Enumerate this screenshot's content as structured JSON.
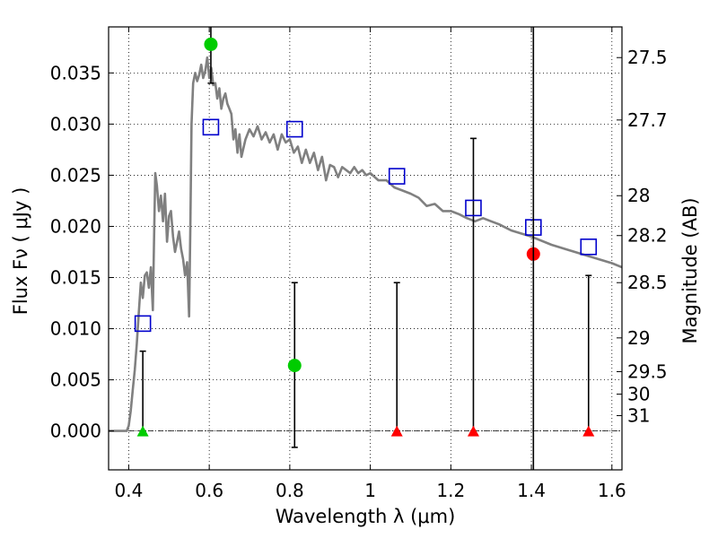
{
  "chart_data": {
    "type": "scatter",
    "xlabel": "Wavelength  λ (μm)",
    "ylabel": "Flux  Fν  ( μJy )",
    "ylabel_right": "Magnitude (AB)",
    "xlim": [
      0.35,
      1.625
    ],
    "ylim": [
      -0.0038,
      0.0395
    ],
    "grid": true,
    "x_ticks": [
      0.4,
      0.6,
      0.8,
      1.0,
      1.2,
      1.4,
      1.6
    ],
    "x_tick_labels": [
      "0.4",
      "0.6",
      "0.8",
      "1",
      "1.2",
      "1.4",
      "1.6"
    ],
    "y_ticks": [
      0.0,
      0.005,
      0.01,
      0.015,
      0.02,
      0.025,
      0.03,
      0.035
    ],
    "y_tick_labels": [
      "0.000",
      "0.005",
      "0.010",
      "0.015",
      "0.020",
      "0.025",
      "0.030",
      "0.035"
    ],
    "magnitude_ticks": [
      {
        "label": "27.5",
        "flux": 0.0365
      },
      {
        "label": "27.7",
        "flux": 0.0304
      },
      {
        "label": "28",
        "flux": 0.023
      },
      {
        "label": "28.2",
        "flux": 0.0191
      },
      {
        "label": "28.5",
        "flux": 0.0145
      },
      {
        "label": "29",
        "flux": 0.0091
      },
      {
        "label": "29.5",
        "flux": 0.0058
      },
      {
        "label": "30",
        "flux": 0.0036
      },
      {
        "label": "31",
        "flux": 0.0015
      }
    ],
    "model_spectrum": {
      "color": "#808080",
      "x": [
        0.35,
        0.395,
        0.4,
        0.405,
        0.41,
        0.415,
        0.42,
        0.425,
        0.43,
        0.435,
        0.44,
        0.445,
        0.45,
        0.455,
        0.46,
        0.463,
        0.466,
        0.47,
        0.475,
        0.48,
        0.485,
        0.49,
        0.495,
        0.5,
        0.505,
        0.51,
        0.515,
        0.52,
        0.525,
        0.53,
        0.535,
        0.54,
        0.545,
        0.55,
        0.553,
        0.556,
        0.56,
        0.565,
        0.57,
        0.575,
        0.58,
        0.585,
        0.59,
        0.595,
        0.6,
        0.605,
        0.61,
        0.615,
        0.62,
        0.625,
        0.63,
        0.635,
        0.64,
        0.645,
        0.65,
        0.655,
        0.66,
        0.665,
        0.67,
        0.675,
        0.68,
        0.69,
        0.7,
        0.71,
        0.72,
        0.73,
        0.74,
        0.75,
        0.76,
        0.77,
        0.78,
        0.79,
        0.8,
        0.81,
        0.82,
        0.83,
        0.84,
        0.85,
        0.86,
        0.87,
        0.88,
        0.89,
        0.9,
        0.91,
        0.92,
        0.93,
        0.94,
        0.95,
        0.96,
        0.97,
        0.98,
        0.99,
        1.0,
        1.02,
        1.04,
        1.06,
        1.08,
        1.1,
        1.12,
        1.14,
        1.16,
        1.18,
        1.2,
        1.22,
        1.24,
        1.26,
        1.28,
        1.3,
        1.32,
        1.35,
        1.4,
        1.45,
        1.5,
        1.55,
        1.6,
        1.625
      ],
      "y": [
        0.0,
        0.0,
        0.0005,
        0.002,
        0.004,
        0.006,
        0.0085,
        0.0115,
        0.0145,
        0.013,
        0.0152,
        0.0155,
        0.014,
        0.016,
        0.0118,
        0.019,
        0.0252,
        0.024,
        0.0215,
        0.023,
        0.0205,
        0.0232,
        0.0185,
        0.021,
        0.0215,
        0.019,
        0.0175,
        0.0185,
        0.0195,
        0.0178,
        0.0168,
        0.0152,
        0.0165,
        0.0112,
        0.02,
        0.03,
        0.034,
        0.035,
        0.0342,
        0.0348,
        0.0358,
        0.0345,
        0.0352,
        0.0365,
        0.0345,
        0.0355,
        0.0338,
        0.034,
        0.0325,
        0.0335,
        0.0315,
        0.0325,
        0.033,
        0.032,
        0.0315,
        0.031,
        0.0285,
        0.0295,
        0.0272,
        0.029,
        0.0268,
        0.0285,
        0.0295,
        0.0288,
        0.0298,
        0.0285,
        0.0292,
        0.0282,
        0.029,
        0.0275,
        0.029,
        0.0282,
        0.0285,
        0.0272,
        0.0278,
        0.0262,
        0.0275,
        0.0262,
        0.0272,
        0.0255,
        0.0268,
        0.0245,
        0.026,
        0.0258,
        0.0248,
        0.0258,
        0.0255,
        0.0252,
        0.0258,
        0.0252,
        0.0255,
        0.025,
        0.0252,
        0.0245,
        0.0245,
        0.0238,
        0.0235,
        0.0232,
        0.0228,
        0.022,
        0.0222,
        0.0215,
        0.0215,
        0.0212,
        0.0208,
        0.0205,
        0.0208,
        0.0205,
        0.0202,
        0.0196,
        0.019,
        0.0182,
        0.0176,
        0.017,
        0.0164,
        0.016
      ]
    },
    "model_band_fluxes": {
      "color": "#0000cc",
      "marker": "open-square",
      "x": [
        0.435,
        0.604,
        0.812,
        1.066,
        1.256,
        1.405,
        1.542
      ],
      "y": [
        0.0105,
        0.0297,
        0.0295,
        0.0249,
        0.0218,
        0.0199,
        0.018
      ]
    },
    "detections": {
      "color": "#00cc00",
      "marker": "circle",
      "points": [
        {
          "x": 0.604,
          "y": 0.0378,
          "err_low": 0.034
        },
        {
          "x": 0.812,
          "y": 0.0064
        }
      ]
    },
    "red_detection": {
      "color": "#ff0000",
      "marker": "circle",
      "x": 1.405,
      "y": 0.0173
    },
    "upper_limits": [
      {
        "x": 0.435,
        "y": 0.0,
        "color": "#00cc00",
        "err_high": 0.0078
      },
      {
        "x": 1.066,
        "y": 0.0,
        "color": "#ff0000",
        "err_high": 0.0145
      },
      {
        "x": 1.256,
        "y": 0.0,
        "color": "#ff0000",
        "err_high": 0.0286
      },
      {
        "x": 1.542,
        "y": 0.0,
        "color": "#ff0000",
        "err_high": 0.0152
      }
    ],
    "extra_errorbars": [
      {
        "x": 0.812,
        "low": -0.0016,
        "high": 0.0145
      }
    ],
    "vertical_line": {
      "x": 1.405,
      "color": "#000000"
    },
    "zero_line": {
      "y": 0.0
    }
  }
}
